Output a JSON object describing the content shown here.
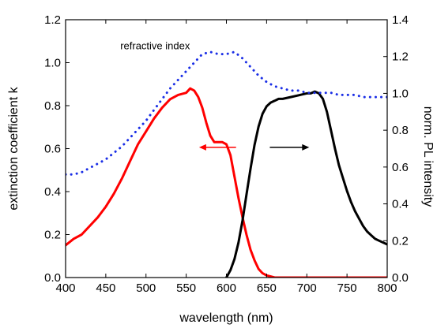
{
  "chart_data": {
    "type": "line",
    "title": "",
    "xlabel": "wavelength (nm)",
    "ylabel_left": "extinction coefficient k",
    "ylabel_right": "norm. PL intensity",
    "xlim": [
      400,
      800
    ],
    "ylim_left": [
      0,
      1.2
    ],
    "ylim_right": [
      0,
      1.4
    ],
    "x_ticks": [
      "400",
      "450",
      "500",
      "550",
      "600",
      "650",
      "700",
      "750",
      "800"
    ],
    "y_left_ticks": [
      "0.0",
      "0.2",
      "0.4",
      "0.6",
      "0.8",
      "1.0",
      "1.2"
    ],
    "y_right_ticks": [
      "0.0",
      "0.2",
      "0.4",
      "0.6",
      "0.8",
      "1.0",
      "1.2",
      "1.4"
    ],
    "grid": false,
    "annotations": [
      {
        "text": "refractive index",
        "x": 468,
        "y": 1.08
      },
      {
        "arrow": "left",
        "series": "extinction coefficient k",
        "x_from": 612,
        "x_to": 566,
        "y": 0.606
      },
      {
        "arrow": "right",
        "series": "norm. PL intensity",
        "x_from": 654,
        "x_to": 703,
        "y": 0.606
      }
    ],
    "series": [
      {
        "name": "",
        "axis": "left",
        "color": "#ff0000",
        "style": "solid",
        "x": [
          400,
          410,
          420,
          430,
          440,
          450,
          460,
          470,
          480,
          490,
          500,
          510,
          520,
          530,
          540,
          550,
          555,
          560,
          565,
          570,
          575,
          580,
          585,
          590,
          595,
          600,
          605,
          610,
          615,
          620,
          625,
          630,
          635,
          640,
          645,
          650,
          655,
          660,
          670,
          680,
          700,
          750,
          800
        ],
        "y": [
          0.15,
          0.18,
          0.2,
          0.24,
          0.28,
          0.33,
          0.39,
          0.46,
          0.54,
          0.62,
          0.68,
          0.74,
          0.79,
          0.83,
          0.85,
          0.86,
          0.88,
          0.87,
          0.84,
          0.79,
          0.72,
          0.66,
          0.63,
          0.63,
          0.63,
          0.62,
          0.57,
          0.47,
          0.37,
          0.28,
          0.2,
          0.13,
          0.08,
          0.04,
          0.02,
          0.01,
          0.005,
          0.0,
          0.0,
          0.0,
          0.0,
          0.0,
          0.0
        ]
      },
      {
        "name": "",
        "axis": "right",
        "color": "#000000",
        "style": "solid",
        "x": [
          600,
          605,
          610,
          615,
          620,
          625,
          630,
          635,
          640,
          645,
          650,
          655,
          660,
          665,
          670,
          680,
          690,
          700,
          705,
          710,
          715,
          720,
          725,
          730,
          735,
          740,
          745,
          750,
          755,
          760,
          765,
          770,
          775,
          780,
          785,
          790,
          795,
          800
        ],
        "y": [
          0.0,
          0.04,
          0.1,
          0.19,
          0.31,
          0.45,
          0.59,
          0.72,
          0.82,
          0.89,
          0.93,
          0.95,
          0.96,
          0.97,
          0.97,
          0.98,
          0.99,
          1.0,
          1.0,
          1.01,
          1.0,
          0.97,
          0.9,
          0.8,
          0.7,
          0.61,
          0.54,
          0.47,
          0.41,
          0.36,
          0.32,
          0.28,
          0.25,
          0.23,
          0.21,
          0.2,
          0.19,
          0.18
        ]
      },
      {
        "name": "refractive index",
        "axis": "left",
        "color": "#1a2ee6",
        "style": "dotted",
        "x": [
          400,
          410,
          420,
          430,
          440,
          450,
          460,
          470,
          480,
          490,
          500,
          510,
          520,
          530,
          540,
          550,
          560,
          570,
          580,
          590,
          600,
          610,
          620,
          630,
          640,
          650,
          660,
          670,
          680,
          690,
          700,
          710,
          720,
          730,
          740,
          750,
          760,
          770,
          780,
          790,
          800
        ],
        "y": [
          0.48,
          0.48,
          0.49,
          0.51,
          0.53,
          0.55,
          0.58,
          0.61,
          0.65,
          0.69,
          0.73,
          0.78,
          0.83,
          0.88,
          0.92,
          0.96,
          1.0,
          1.04,
          1.05,
          1.04,
          1.04,
          1.05,
          1.02,
          0.98,
          0.94,
          0.91,
          0.89,
          0.88,
          0.87,
          0.87,
          0.86,
          0.86,
          0.86,
          0.86,
          0.85,
          0.85,
          0.85,
          0.84,
          0.84,
          0.84,
          0.84
        ]
      }
    ]
  }
}
